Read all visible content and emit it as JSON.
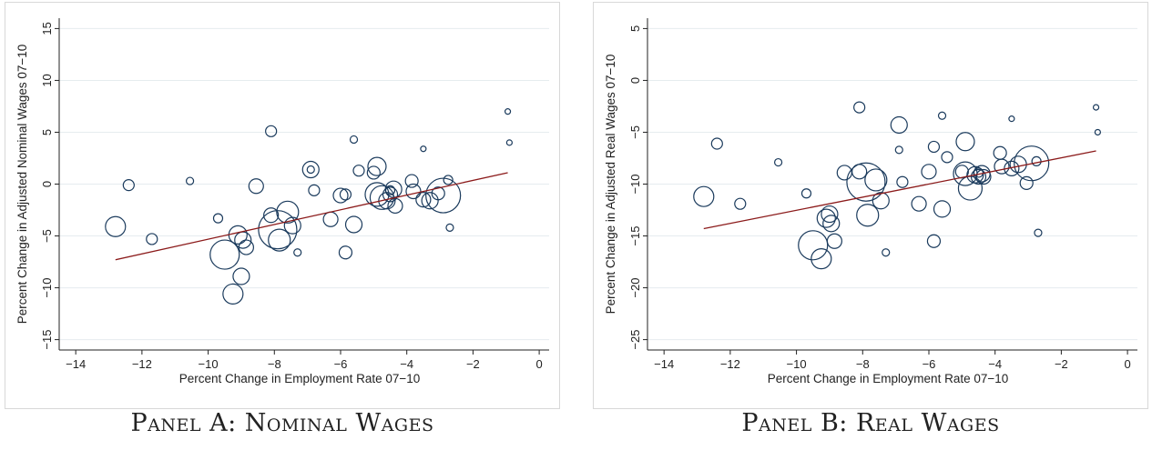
{
  "panels": [
    {
      "id": "a",
      "caption": "Panel A: Nominal Wages",
      "ylabel": "Percent Change in Adjusted Nominal Wages 07−10",
      "xlabel": "Percent Change in Employment Rate 07−10"
    },
    {
      "id": "b",
      "caption": "Panel B: Real Wages",
      "ylabel": "Percent Change in Adjusted Real Wages 07−10",
      "xlabel": "Percent Change in Employment Rate 07−10"
    }
  ],
  "colors": {
    "marker": "#1a3a5c",
    "fit_line": "#8b1a1a",
    "grid": "#e6ecef",
    "frame": "#d8d8d8"
  },
  "chart_data": [
    {
      "type": "scatter",
      "title": "",
      "xlabel": "Percent Change in Employment Rate 07−10",
      "ylabel": "Percent Change in Adjusted Nominal Wages 07−10",
      "xlim": [
        -14.5,
        0.3
      ],
      "ylim": [
        -16,
        16
      ],
      "xticks": [
        -14,
        -12,
        -10,
        -8,
        -6,
        -4,
        -2,
        0
      ],
      "xtick_labels": [
        "−14",
        "−12",
        "−10",
        "−8",
        "−6",
        "−4",
        "−2",
        "0"
      ],
      "yticks": [
        -15,
        -10,
        -5,
        0,
        5,
        10,
        15
      ],
      "ytick_labels": [
        "−15",
        "−10",
        "−5",
        "0",
        "5",
        "10",
        "15"
      ],
      "grid": true,
      "fit_line": {
        "x": [
          -12.8,
          -0.95
        ],
        "y": [
          -7.3,
          1.1
        ]
      },
      "points": [
        {
          "x": -12.8,
          "y": -4.1,
          "s": 11
        },
        {
          "x": -12.4,
          "y": -0.1,
          "s": 6
        },
        {
          "x": -11.7,
          "y": -5.3,
          "s": 6
        },
        {
          "x": -10.55,
          "y": 0.3,
          "s": 4
        },
        {
          "x": -9.7,
          "y": -3.3,
          "s": 5
        },
        {
          "x": -9.5,
          "y": -6.8,
          "s": 16
        },
        {
          "x": -9.25,
          "y": -10.6,
          "s": 11
        },
        {
          "x": -9.1,
          "y": -4.9,
          "s": 10
        },
        {
          "x": -9.0,
          "y": -8.9,
          "s": 9
        },
        {
          "x": -8.95,
          "y": -5.4,
          "s": 9
        },
        {
          "x": -8.85,
          "y": -6.1,
          "s": 8
        },
        {
          "x": -8.55,
          "y": -0.2,
          "s": 8
        },
        {
          "x": -8.1,
          "y": 5.1,
          "s": 6
        },
        {
          "x": -8.1,
          "y": -3.0,
          "s": 8
        },
        {
          "x": -7.9,
          "y": -4.4,
          "s": 21
        },
        {
          "x": -7.85,
          "y": -5.4,
          "s": 12
        },
        {
          "x": -7.6,
          "y": -2.7,
          "s": 12
        },
        {
          "x": -7.45,
          "y": -4.0,
          "s": 9
        },
        {
          "x": -7.3,
          "y": -6.6,
          "s": 4
        },
        {
          "x": -6.9,
          "y": 1.4,
          "s": 9
        },
        {
          "x": -6.9,
          "y": 1.4,
          "s": 4
        },
        {
          "x": -6.8,
          "y": -0.6,
          "s": 6
        },
        {
          "x": -6.3,
          "y": -3.4,
          "s": 8
        },
        {
          "x": -6.0,
          "y": -1.1,
          "s": 8
        },
        {
          "x": -5.85,
          "y": -6.6,
          "s": 7
        },
        {
          "x": -5.85,
          "y": -1.0,
          "s": 6
        },
        {
          "x": -5.6,
          "y": -3.9,
          "s": 9
        },
        {
          "x": -5.6,
          "y": 4.3,
          "s": 4
        },
        {
          "x": -5.45,
          "y": 1.3,
          "s": 6
        },
        {
          "x": -5.0,
          "y": 1.1,
          "s": 7
        },
        {
          "x": -4.9,
          "y": 1.7,
          "s": 10
        },
        {
          "x": -4.9,
          "y": -1.0,
          "s": 13
        },
        {
          "x": -4.75,
          "y": -1.3,
          "s": 13
        },
        {
          "x": -4.6,
          "y": -1.6,
          "s": 9
        },
        {
          "x": -4.5,
          "y": -1.0,
          "s": 8
        },
        {
          "x": -4.5,
          "y": -0.6,
          "s": 5
        },
        {
          "x": -4.4,
          "y": -0.5,
          "s": 9
        },
        {
          "x": -4.35,
          "y": -2.1,
          "s": 8
        },
        {
          "x": -3.85,
          "y": 0.3,
          "s": 7
        },
        {
          "x": -3.8,
          "y": -0.7,
          "s": 8
        },
        {
          "x": -3.5,
          "y": 3.4,
          "s": 3
        },
        {
          "x": -3.5,
          "y": -1.5,
          "s": 8
        },
        {
          "x": -3.3,
          "y": -1.6,
          "s": 9
        },
        {
          "x": -3.05,
          "y": -0.9,
          "s": 7
        },
        {
          "x": -2.9,
          "y": -1.1,
          "s": 19
        },
        {
          "x": -2.75,
          "y": 0.4,
          "s": 5
        },
        {
          "x": -2.7,
          "y": -4.2,
          "s": 4
        },
        {
          "x": -0.95,
          "y": 7.0,
          "s": 3
        },
        {
          "x": -0.9,
          "y": 4.0,
          "s": 3
        }
      ]
    },
    {
      "type": "scatter",
      "title": "",
      "xlabel": "Percent Change in Employment Rate 07−10",
      "ylabel": "Percent Change in Adjusted Real Wages 07−10",
      "xlim": [
        -14.5,
        0.3
      ],
      "ylim": [
        -26,
        6
      ],
      "xticks": [
        -14,
        -12,
        -10,
        -8,
        -6,
        -4,
        -2,
        0
      ],
      "xtick_labels": [
        "−14",
        "−12",
        "−10",
        "−8",
        "−6",
        "−4",
        "−2",
        "0"
      ],
      "yticks": [
        -25,
        -20,
        -15,
        -10,
        -5,
        0,
        5
      ],
      "ytick_labels": [
        "−25",
        "−20",
        "−15",
        "−10",
        "−5",
        "0",
        "5"
      ],
      "grid": true,
      "fit_line": {
        "x": [
          -12.8,
          -0.95
        ],
        "y": [
          -14.3,
          -6.8
        ]
      },
      "points": [
        {
          "x": -12.8,
          "y": -11.2,
          "s": 11
        },
        {
          "x": -12.4,
          "y": -6.1,
          "s": 6
        },
        {
          "x": -11.7,
          "y": -11.9,
          "s": 6
        },
        {
          "x": -10.55,
          "y": -7.9,
          "s": 4
        },
        {
          "x": -9.7,
          "y": -10.9,
          "s": 5
        },
        {
          "x": -9.5,
          "y": -15.9,
          "s": 16
        },
        {
          "x": -9.25,
          "y": -17.2,
          "s": 11
        },
        {
          "x": -9.1,
          "y": -13.3,
          "s": 10
        },
        {
          "x": -9.0,
          "y": -12.9,
          "s": 9
        },
        {
          "x": -8.95,
          "y": -13.8,
          "s": 9
        },
        {
          "x": -8.85,
          "y": -15.5,
          "s": 8
        },
        {
          "x": -8.55,
          "y": -8.9,
          "s": 8
        },
        {
          "x": -8.1,
          "y": -2.6,
          "s": 6
        },
        {
          "x": -8.1,
          "y": -8.8,
          "s": 8
        },
        {
          "x": -7.9,
          "y": -9.8,
          "s": 21
        },
        {
          "x": -7.85,
          "y": -13.0,
          "s": 12
        },
        {
          "x": -7.6,
          "y": -9.6,
          "s": 12
        },
        {
          "x": -7.45,
          "y": -11.6,
          "s": 9
        },
        {
          "x": -7.3,
          "y": -16.6,
          "s": 4
        },
        {
          "x": -6.9,
          "y": -4.3,
          "s": 9
        },
        {
          "x": -6.9,
          "y": -6.7,
          "s": 4
        },
        {
          "x": -6.8,
          "y": -9.8,
          "s": 6
        },
        {
          "x": -6.3,
          "y": -11.9,
          "s": 8
        },
        {
          "x": -6.0,
          "y": -8.8,
          "s": 8
        },
        {
          "x": -5.85,
          "y": -15.5,
          "s": 7
        },
        {
          "x": -5.85,
          "y": -6.4,
          "s": 6
        },
        {
          "x": -5.6,
          "y": -12.4,
          "s": 9
        },
        {
          "x": -5.6,
          "y": -3.4,
          "s": 4
        },
        {
          "x": -5.45,
          "y": -7.4,
          "s": 6
        },
        {
          "x": -5.0,
          "y": -8.8,
          "s": 7
        },
        {
          "x": -4.9,
          "y": -5.9,
          "s": 10
        },
        {
          "x": -4.9,
          "y": -9.0,
          "s": 13
        },
        {
          "x": -4.75,
          "y": -10.4,
          "s": 13
        },
        {
          "x": -4.6,
          "y": -9.1,
          "s": 9
        },
        {
          "x": -4.5,
          "y": -9.3,
          "s": 8
        },
        {
          "x": -4.5,
          "y": -8.9,
          "s": 5
        },
        {
          "x": -4.4,
          "y": -9.0,
          "s": 9
        },
        {
          "x": -4.35,
          "y": -9.3,
          "s": 8
        },
        {
          "x": -3.85,
          "y": -7.0,
          "s": 7
        },
        {
          "x": -3.8,
          "y": -8.3,
          "s": 8
        },
        {
          "x": -3.5,
          "y": -3.7,
          "s": 3
        },
        {
          "x": -3.5,
          "y": -8.5,
          "s": 8
        },
        {
          "x": -3.3,
          "y": -8.1,
          "s": 9
        },
        {
          "x": -3.05,
          "y": -9.9,
          "s": 7
        },
        {
          "x": -2.9,
          "y": -8.0,
          "s": 19
        },
        {
          "x": -2.75,
          "y": -7.8,
          "s": 5
        },
        {
          "x": -2.7,
          "y": -14.7,
          "s": 4
        },
        {
          "x": -0.95,
          "y": -2.6,
          "s": 3
        },
        {
          "x": -0.9,
          "y": -5.0,
          "s": 3
        }
      ]
    }
  ]
}
